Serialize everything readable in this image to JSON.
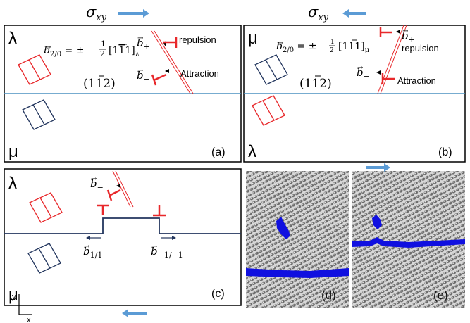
{
  "figure": {
    "stress_top_a": "σ",
    "stress_top_a_sub": "xy",
    "stress_top_b": "σ",
    "stress_top_b_sub": "xy",
    "axes": {
      "y": "y",
      "x": "x"
    },
    "colors": {
      "lambda_cell": "#e8282b",
      "mu_cell": "#23365e",
      "interface": "#4a90c0",
      "arrow": "#5b9bd5",
      "defect": "#1010e0"
    }
  },
  "panels": {
    "a": {
      "label": "(a)",
      "phase_top": "λ",
      "phase_bottom": "μ",
      "burgers": "b",
      "burgers_sub": "2/0",
      "burgers_eq": " = ±",
      "frac_num": "1",
      "frac_den": "2",
      "vector": "[1",
      "vector_bar": "1",
      "vector_end": "1]",
      "vector_sub": "λ",
      "plane": "(1",
      "plane_bar": "1",
      "plane_end": "2)",
      "b_plus": "b",
      "b_plus_sub": "+",
      "b_minus": "b",
      "b_minus_sub": "−",
      "repulsion": "repulsion",
      "attraction": "Attraction"
    },
    "b": {
      "label": "(b)",
      "phase_top": "μ",
      "phase_bottom": "λ",
      "burgers": "b",
      "burgers_sub": "2/0",
      "burgers_eq": " = ±",
      "frac_num": "1",
      "frac_den": "2",
      "vector": "[1",
      "vector_bar": "1",
      "vector_end": "1]",
      "vector_sub": "μ",
      "plane": "(1",
      "plane_bar": "1",
      "plane_end": "2)",
      "b_plus": "b",
      "b_plus_sub": "+",
      "b_minus": "b",
      "b_minus_sub": "−",
      "repulsion": "repulsion",
      "attraction": "Attraction"
    },
    "c": {
      "label": "(c)",
      "phase_top": "λ",
      "phase_bottom": "μ",
      "b_minus": "b",
      "b_minus_sub": "−",
      "b_11": "b",
      "b_11_sub": "1/1",
      "b_1m1": "b",
      "b_1m1_sub": "−1/−1"
    },
    "d": {
      "label": "(d)"
    },
    "e": {
      "label": "(e)"
    }
  }
}
